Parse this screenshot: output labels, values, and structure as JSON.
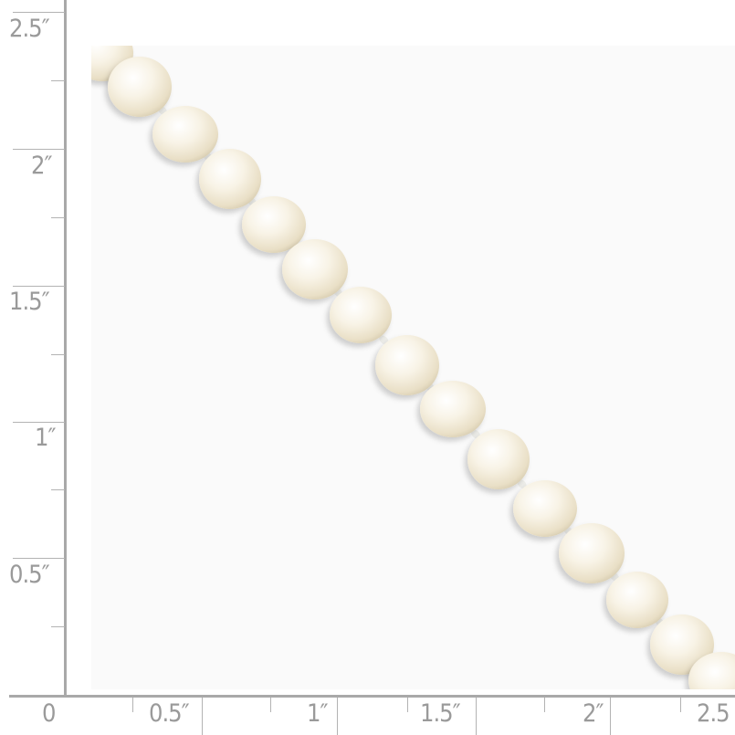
{
  "ruler": {
    "unit_mark": "″",
    "vertical_labels": [
      "2.5″",
      "2″",
      "1.5″",
      "1″",
      "0.5″"
    ],
    "horizontal_labels": [
      "0",
      "0.5″",
      "1″",
      "1.5″",
      "2″",
      "2.5"
    ],
    "color": "#a9a9a9"
  },
  "photo": {
    "subject": "white freshwater pearl strand",
    "pearl_color": "#f6f0e0",
    "background_color": "#fafafa"
  }
}
